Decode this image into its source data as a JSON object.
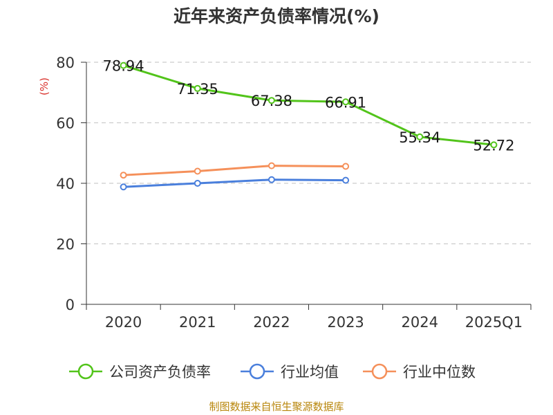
{
  "chart_data": {
    "type": "line",
    "title": "近年来资产负债率情况(%)",
    "ylabel": "(%)",
    "categories": [
      "2020",
      "2021",
      "2022",
      "2023",
      "2024",
      "2025Q1"
    ],
    "ylim": [
      0,
      80
    ],
    "yticks": [
      0,
      20,
      40,
      60,
      80
    ],
    "grid": true,
    "legend_position": "bottom",
    "series": [
      {
        "name": "公司资产负债率",
        "color": "#52c41a",
        "values": [
          78.94,
          71.35,
          67.38,
          66.91,
          55.34,
          52.72
        ],
        "value_labels": [
          "78.94",
          "71.35",
          "67.38",
          "66.91",
          "55.34",
          "52.72"
        ]
      },
      {
        "name": "行业均值",
        "color": "#4a7fdc",
        "values": [
          38.8,
          40.0,
          41.2,
          41.0,
          null,
          null
        ]
      },
      {
        "name": "行业中位数",
        "color": "#f5905a",
        "values": [
          42.7,
          44.0,
          45.8,
          45.6,
          null,
          null
        ]
      }
    ]
  },
  "source": "制图数据来自恒生聚源数据库"
}
